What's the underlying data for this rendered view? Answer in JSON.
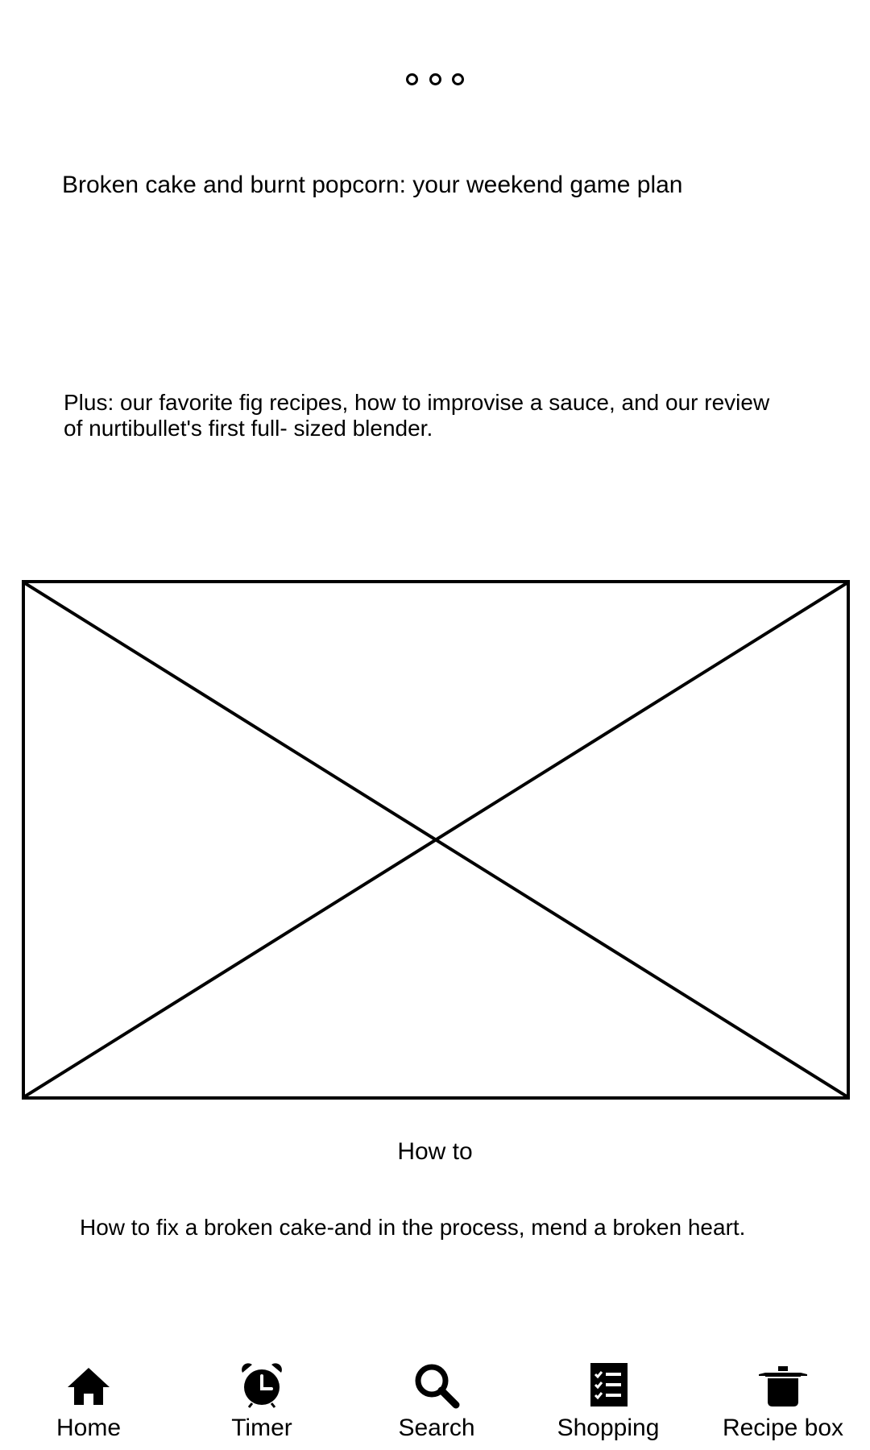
{
  "pager": {
    "dots": 3
  },
  "feature": {
    "headline": "Broken cake and burnt popcorn: your weekend game plan",
    "subhead": "Plus: our favorite fig recipes, how to improvise a sauce, and our review of nurtibullet's first full- sized blender."
  },
  "section": {
    "label": "How to"
  },
  "article": {
    "title": "How to fix a broken cake-and in the process, mend a broken heart."
  },
  "nav": {
    "items": [
      {
        "label": "Home",
        "icon": "home-icon"
      },
      {
        "label": "Timer",
        "icon": "alarm-clock-icon"
      },
      {
        "label": "Search",
        "icon": "search-icon"
      },
      {
        "label": "Shopping",
        "icon": "shopping-list-icon"
      },
      {
        "label": "Recipe box",
        "icon": "pot-icon"
      }
    ]
  },
  "colors": {
    "background": "#ffffff",
    "foreground": "#000000"
  }
}
